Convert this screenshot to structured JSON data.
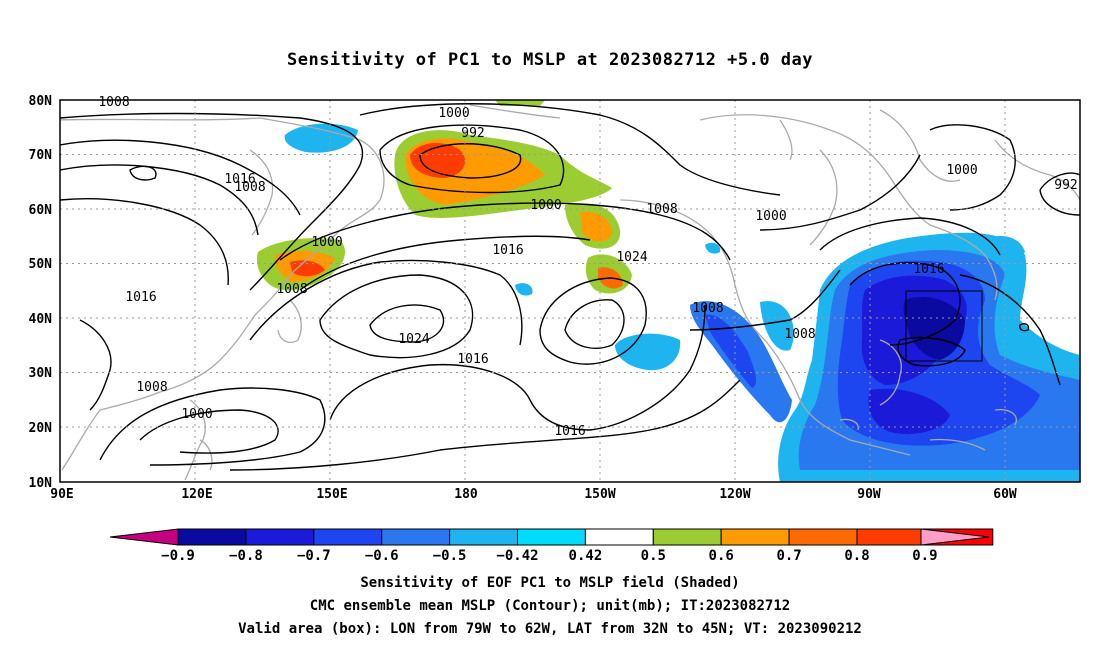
{
  "title": "Sensitivity of PC1 to MSLP at 2023082712 +5.0 day",
  "axes": {
    "lat_ticks": [
      "80N",
      "70N",
      "60N",
      "50N",
      "40N",
      "30N",
      "20N",
      "10N"
    ],
    "lon_ticks": [
      "90E",
      "120E",
      "150E",
      "180",
      "150W",
      "120W",
      "90W",
      "60W"
    ]
  },
  "contour_labels": [
    "1008",
    "1000",
    "992",
    "1016",
    "1008",
    "1000",
    "1016",
    "1024",
    "1000",
    "1008",
    "1000",
    "1000",
    "992",
    "1016",
    "1008",
    "1016",
    "1024",
    "1008",
    "1008",
    "1016",
    "1016",
    "1008",
    "1000",
    "1008"
  ],
  "colorbar": {
    "labels": [
      "-0.9",
      "-0.8",
      "-0.7",
      "-0.6",
      "-0.5",
      "-0.42",
      "0.42",
      "0.5",
      "0.6",
      "0.7",
      "0.8",
      "0.9"
    ],
    "colors": [
      "#c4007f",
      "#0a0aa0",
      "#1a1ad8",
      "#1e46f0",
      "#2a78f0",
      "#1eb4f0",
      "#00dcff",
      "#ffffff",
      "#9bcd32",
      "#ff9a00",
      "#ff6a00",
      "#ff3c00",
      "#ff0000",
      "#ff9ec8"
    ]
  },
  "captions": [
    "Sensitivity of EOF PC1 to MSLP field (Shaded)",
    "CMC ensemble mean MSLP (Contour); unit(mb); IT:2023082712",
    "Valid area (box): LON from 79W to 62W, LAT from 32N to 45N; VT: 2023090212"
  ]
}
